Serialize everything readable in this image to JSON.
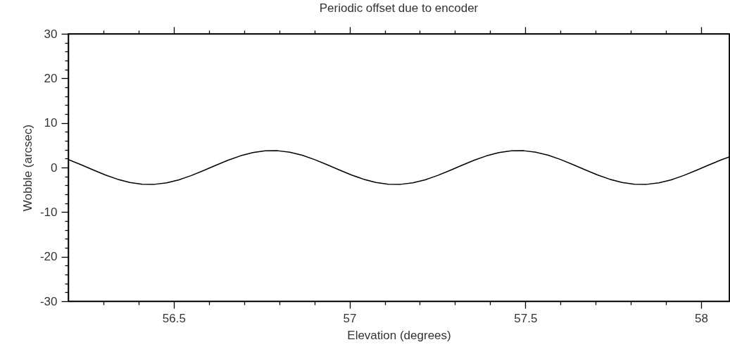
{
  "chart_data": {
    "type": "line",
    "title": "Periodic offset due to encoder",
    "xlabel": "Elevation (degrees)",
    "ylabel": "Wobble (arcsec)",
    "color": "#000000",
    "x": [
      56.2,
      56.235,
      56.27,
      56.305,
      56.34,
      56.375,
      56.41,
      56.445,
      56.48,
      56.515,
      56.55,
      56.585,
      56.62,
      56.655,
      56.69,
      56.725,
      56.76,
      56.795,
      56.83,
      56.865,
      56.9,
      56.935,
      56.97,
      57.005,
      57.04,
      57.075,
      57.11,
      57.145,
      57.18,
      57.215,
      57.25,
      57.285,
      57.32,
      57.355,
      57.39,
      57.425,
      57.46,
      57.495,
      57.53,
      57.565,
      57.6,
      57.635,
      57.67,
      57.705,
      57.74,
      57.775,
      57.81,
      57.845,
      57.88,
      57.915,
      57.95,
      57.985,
      58.02,
      58.055,
      58.08
    ],
    "values": [
      1.8,
      0.68,
      -0.51,
      -1.65,
      -2.63,
      -3.35,
      -3.74,
      -3.77,
      -3.42,
      -2.75,
      -1.8,
      -0.68,
      0.51,
      1.65,
      2.63,
      3.35,
      3.74,
      3.77,
      3.42,
      2.75,
      1.8,
      0.68,
      -0.51,
      -1.65,
      -2.63,
      -3.35,
      -3.74,
      -3.77,
      -3.42,
      -2.75,
      -1.8,
      -0.68,
      0.51,
      1.65,
      2.63,
      3.35,
      3.74,
      3.77,
      3.42,
      2.75,
      1.8,
      0.68,
      -0.51,
      -1.65,
      -2.63,
      -3.35,
      -3.74,
      -3.77,
      -3.42,
      -2.75,
      -1.8,
      -0.68,
      0.51,
      1.65,
      2.37
    ],
    "xlim": [
      56.2,
      58.08
    ],
    "ylim": [
      -30,
      30
    ],
    "xticks": [
      {
        "value": 56.3,
        "label": null
      },
      {
        "value": 56.4,
        "label": null
      },
      56.5,
      {
        "value": 56.6,
        "label": null
      },
      {
        "value": 56.7,
        "label": null
      },
      {
        "value": 56.8,
        "label": null
      },
      {
        "value": 56.9,
        "label": null
      },
      57,
      {
        "value": 57.1,
        "label": null
      },
      {
        "value": 57.2,
        "label": null
      },
      {
        "value": 57.3,
        "label": null
      },
      {
        "value": 57.4,
        "label": null
      },
      57.5,
      {
        "value": 57.6,
        "label": null
      },
      {
        "value": 57.7,
        "label": null
      },
      {
        "value": 57.8,
        "label": null
      },
      {
        "value": 57.9,
        "label": null
      },
      58
    ],
    "yticks": [
      -30,
      {
        "value": -28,
        "label": null
      },
      {
        "value": -26,
        "label": null
      },
      {
        "value": -24,
        "label": null
      },
      {
        "value": -22,
        "label": null
      },
      -20,
      {
        "value": -18,
        "label": null
      },
      {
        "value": -16,
        "label": null
      },
      {
        "value": -14,
        "label": null
      },
      {
        "value": -12,
        "label": null
      },
      -10,
      {
        "value": -8,
        "label": null
      },
      {
        "value": -6,
        "label": null
      },
      {
        "value": -4,
        "label": null
      },
      {
        "value": -2,
        "label": null
      },
      0,
      {
        "value": 2,
        "label": null
      },
      {
        "value": 4,
        "label": null
      },
      {
        "value": 6,
        "label": null
      },
      {
        "value": 8,
        "label": null
      },
      10,
      {
        "value": 12,
        "label": null
      },
      {
        "value": 14,
        "label": null
      },
      {
        "value": 16,
        "label": null
      },
      {
        "value": 18,
        "label": null
      },
      20,
      {
        "value": 22,
        "label": null
      },
      {
        "value": 24,
        "label": null
      },
      {
        "value": 26,
        "label": null
      },
      {
        "value": 28,
        "label": null
      },
      30
    ]
  }
}
